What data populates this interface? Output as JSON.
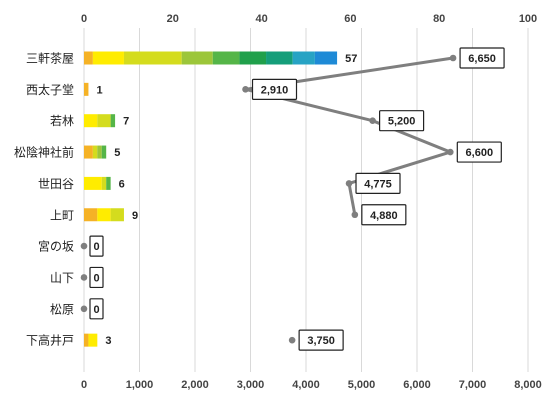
{
  "chart_data": {
    "type": "bar",
    "categories": [
      "三軒茶屋",
      "西太子堂",
      "若林",
      "松陰神社前",
      "世田谷",
      "上町",
      "宮の坂",
      "山下",
      "松原",
      "下高井戸"
    ],
    "counts": [
      57,
      1,
      7,
      5,
      6,
      9,
      0,
      0,
      0,
      3
    ],
    "count_labels": [
      "57",
      "1",
      "7",
      "5",
      "6",
      "9",
      "0",
      "0",
      "0",
      "3"
    ],
    "rent": [
      6650,
      2910,
      5200,
      6600,
      4775,
      4880,
      null,
      null,
      null,
      3750
    ],
    "rent_labels": [
      "6,650",
      "2,910",
      "5,200",
      "6,600",
      "4,775",
      "4,880",
      "",
      "",
      "",
      "3,750"
    ],
    "zero_rent_rows": [
      6,
      7,
      8
    ],
    "top_axis": {
      "min": 0,
      "max": 100,
      "ticks": [
        0,
        20,
        40,
        60,
        80,
        100
      ],
      "tick_labels": [
        "0",
        "20",
        "40",
        "60",
        "80",
        "100"
      ]
    },
    "bottom_axis": {
      "min": 0,
      "max": 8000,
      "ticks": [
        0,
        1000,
        2000,
        3000,
        4000,
        5000,
        6000,
        7000,
        8000
      ],
      "tick_labels": [
        "0",
        "1,000",
        "2,000",
        "3,000",
        "4,000",
        "5,000",
        "6,000",
        "7,000",
        "8,000"
      ]
    },
    "segment_colors": [
      "#f5b226",
      "#ffec00",
      "#d4dc1e",
      "#9cc63a",
      "#55b548",
      "#20a04b",
      "#159e7a",
      "#27a3c4",
      "#1e8ad6"
    ],
    "segments": [
      [
        2,
        7,
        13,
        7,
        6,
        6,
        6,
        5,
        5
      ],
      [
        1
      ],
      [
        0,
        3,
        3,
        0,
        1
      ],
      [
        2,
        0,
        1,
        1,
        1
      ],
      [
        0,
        4,
        1,
        0,
        1
      ],
      [
        3,
        3,
        3
      ],
      [],
      [],
      [],
      [
        1,
        2
      ]
    ],
    "grid": true,
    "line_color": "#7f7f7f"
  }
}
